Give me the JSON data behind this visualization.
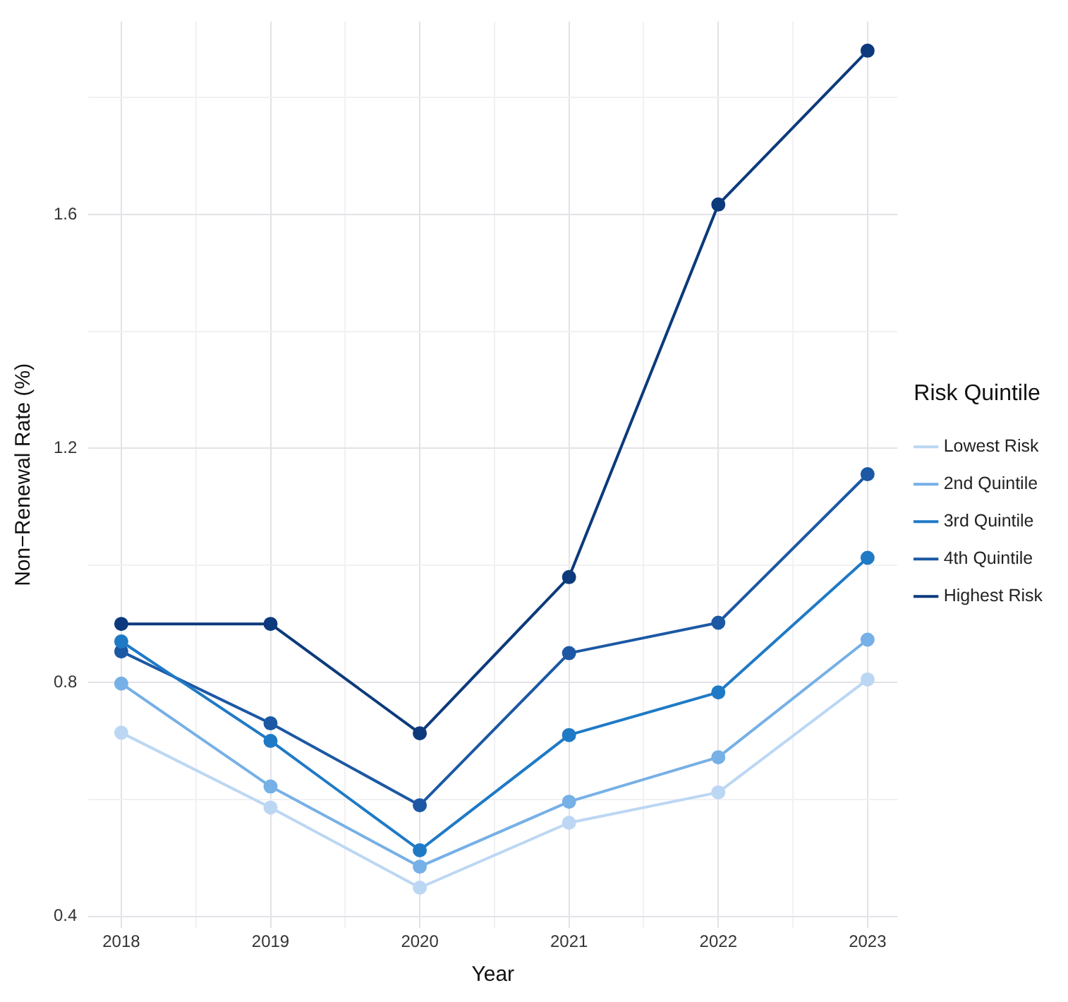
{
  "chart_data": {
    "type": "line",
    "xlabel": "Year",
    "ylabel": "Non−Renewal Rate (%)",
    "legend_title": "Risk Quintile",
    "legend": "right",
    "grid": true,
    "marker": "circle",
    "line_style": "solid",
    "x": [
      2018,
      2019,
      2020,
      2021,
      2022,
      2023
    ],
    "xlim": [
      2017.78,
      2023.2
    ],
    "xticks": [
      2018,
      {
        "value": 2018.5,
        "label": null
      },
      2019,
      {
        "value": 2019.5,
        "label": null
      },
      2020,
      {
        "value": 2020.5,
        "label": null
      },
      2021,
      {
        "value": 2021.5,
        "label": null
      },
      2022,
      {
        "value": 2022.5,
        "label": null
      },
      2023
    ],
    "ylim": [
      0.38,
      1.93
    ],
    "yticks": [
      0.4,
      {
        "value": 0.6,
        "label": null
      },
      0.8,
      {
        "value": 1.0,
        "label": null
      },
      1.2,
      {
        "value": 1.4,
        "label": null
      },
      1.6,
      {
        "value": 1.8,
        "label": null
      }
    ],
    "series": [
      {
        "name": "Lowest Risk",
        "color": "#bcd7f3",
        "values": [
          0.714,
          0.586,
          0.449,
          0.56,
          0.612,
          0.805
        ]
      },
      {
        "name": "2nd Quintile",
        "color": "#76b0e6",
        "values": [
          0.798,
          0.622,
          0.485,
          0.596,
          0.672,
          0.873
        ]
      },
      {
        "name": "3rd Quintile",
        "color": "#1f7ac6",
        "values": [
          0.87,
          0.7,
          0.513,
          0.71,
          0.783,
          1.013
        ]
      },
      {
        "name": "4th Quintile",
        "color": "#1c58a4",
        "values": [
          0.853,
          0.73,
          0.59,
          0.85,
          0.902,
          1.156
        ]
      },
      {
        "name": "Highest Risk",
        "color": "#0c3a7c",
        "values": [
          0.9,
          0.9,
          0.713,
          0.98,
          1.617,
          1.88
        ]
      }
    ]
  }
}
